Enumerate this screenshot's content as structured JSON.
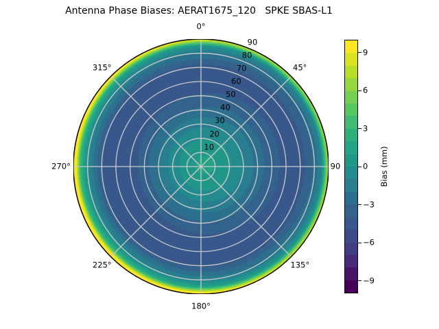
{
  "header": {
    "title": "Antenna Phase Biases: AERAT1675_120   SPKE SBAS-L1"
  },
  "chart_data": {
    "type": "heatmap",
    "projection": "polar",
    "title": "Antenna Phase Biases: AERAT1675_120   SPKE SBAS-L1",
    "angular_tick_labels": [
      "0°",
      "45°",
      "90",
      "135°",
      "180°",
      "225°",
      "270°",
      "315°"
    ],
    "angular_tick_degrees": [
      0,
      45,
      90,
      135,
      180,
      225,
      270,
      315
    ],
    "radial_tick_labels": [
      "10",
      "20",
      "30",
      "40",
      "50",
      "60",
      "70",
      "80",
      "90"
    ],
    "radial_tick_values": [
      10,
      20,
      30,
      40,
      50,
      60,
      70,
      80,
      90
    ],
    "radial_max": 90,
    "grid_color": "#cbcbcb",
    "colorbar": {
      "label": "Bias (mm)",
      "vmin": -10,
      "vmax": 10,
      "level_step_mm": 1,
      "ticks": [
        {
          "value": 9,
          "label": "9"
        },
        {
          "value": 6,
          "label": "6"
        },
        {
          "value": 3,
          "label": "3"
        },
        {
          "value": 0,
          "label": "0"
        },
        {
          "value": -3,
          "label": "−3"
        },
        {
          "value": -6,
          "label": "−6"
        },
        {
          "value": -9,
          "label": "−9"
        }
      ],
      "band_colors": [
        "#440154",
        "#461567",
        "#472a79",
        "#423c82",
        "#3d4c89",
        "#38578b",
        "#33638d",
        "#2d708e",
        "#287d8e",
        "#238a8d",
        "#21978a",
        "#22a386",
        "#2daf7e",
        "#3fbb73",
        "#58c565",
        "#74cf54",
        "#96d73f",
        "#b9de28",
        "#dbe325",
        "#fde725"
      ]
    },
    "bias_profile": {
      "zenith_deg": [
        0,
        10,
        20,
        30,
        40,
        50,
        60,
        70,
        80,
        85,
        90
      ],
      "bias_mm": [
        1.3,
        0.8,
        -0.2,
        -1.5,
        -3.0,
        -4.1,
        -4.6,
        -4.4,
        -1.6,
        1.0,
        10.5
      ],
      "azimuth_model": {
        "direction_deg": 250,
        "rim_amplitude_mm": 3.0,
        "mid_amplitude_mm": -0.6
      }
    }
  }
}
